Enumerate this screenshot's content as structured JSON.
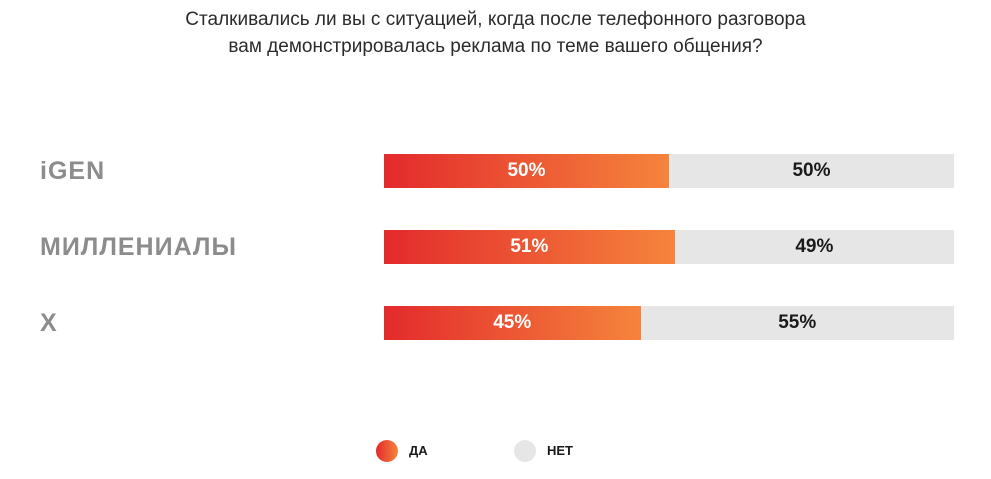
{
  "chart_data": {
    "type": "bar",
    "stacked": true,
    "orientation": "horizontal",
    "title": "Сталкивались ли вы с ситуацией, когда после телефонного разговора вам демонстрировалась реклама по теме вашего общения?",
    "title_lines": [
      "Сталкивались ли вы с ситуацией, когда после телефонного разговора",
      "вам демонстрировалась реклама по теме вашего общения?"
    ],
    "categories": [
      "iGEN",
      "МИЛЛЕНИАЛЫ",
      "X"
    ],
    "series": [
      {
        "name": "ДА",
        "values": [
          50,
          51,
          45
        ],
        "color": "#e8452f",
        "labels": [
          "50%",
          "51%",
          "45%"
        ]
      },
      {
        "name": "НЕТ",
        "values": [
          50,
          49,
          55
        ],
        "color": "#e6e6e6",
        "labels": [
          "50%",
          "49%",
          "55%"
        ]
      }
    ],
    "xlim": [
      0,
      100
    ],
    "grid": false,
    "legend_position": "bottom-center"
  }
}
